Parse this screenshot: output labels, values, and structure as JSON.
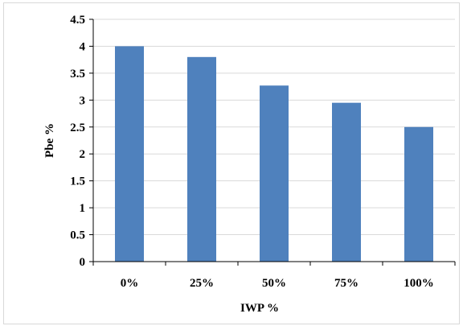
{
  "chart_data": {
    "type": "bar",
    "title": "",
    "xlabel": "IWP %",
    "ylabel": "Pbe %",
    "categories": [
      "0%",
      "25%",
      "50%",
      "75%",
      "100%"
    ],
    "values": [
      4.0,
      3.8,
      3.27,
      2.95,
      2.5
    ],
    "ylim": [
      0,
      4.5
    ],
    "yticks": [
      "0",
      "0.5",
      "1",
      "1.5",
      "2",
      "2.5",
      "3",
      "3.5",
      "4",
      "4.5"
    ],
    "grid": true,
    "legend": "none",
    "colors": {
      "bar": "#4f81bd",
      "grid": "#d9d9d9",
      "axis": "#000000"
    }
  }
}
